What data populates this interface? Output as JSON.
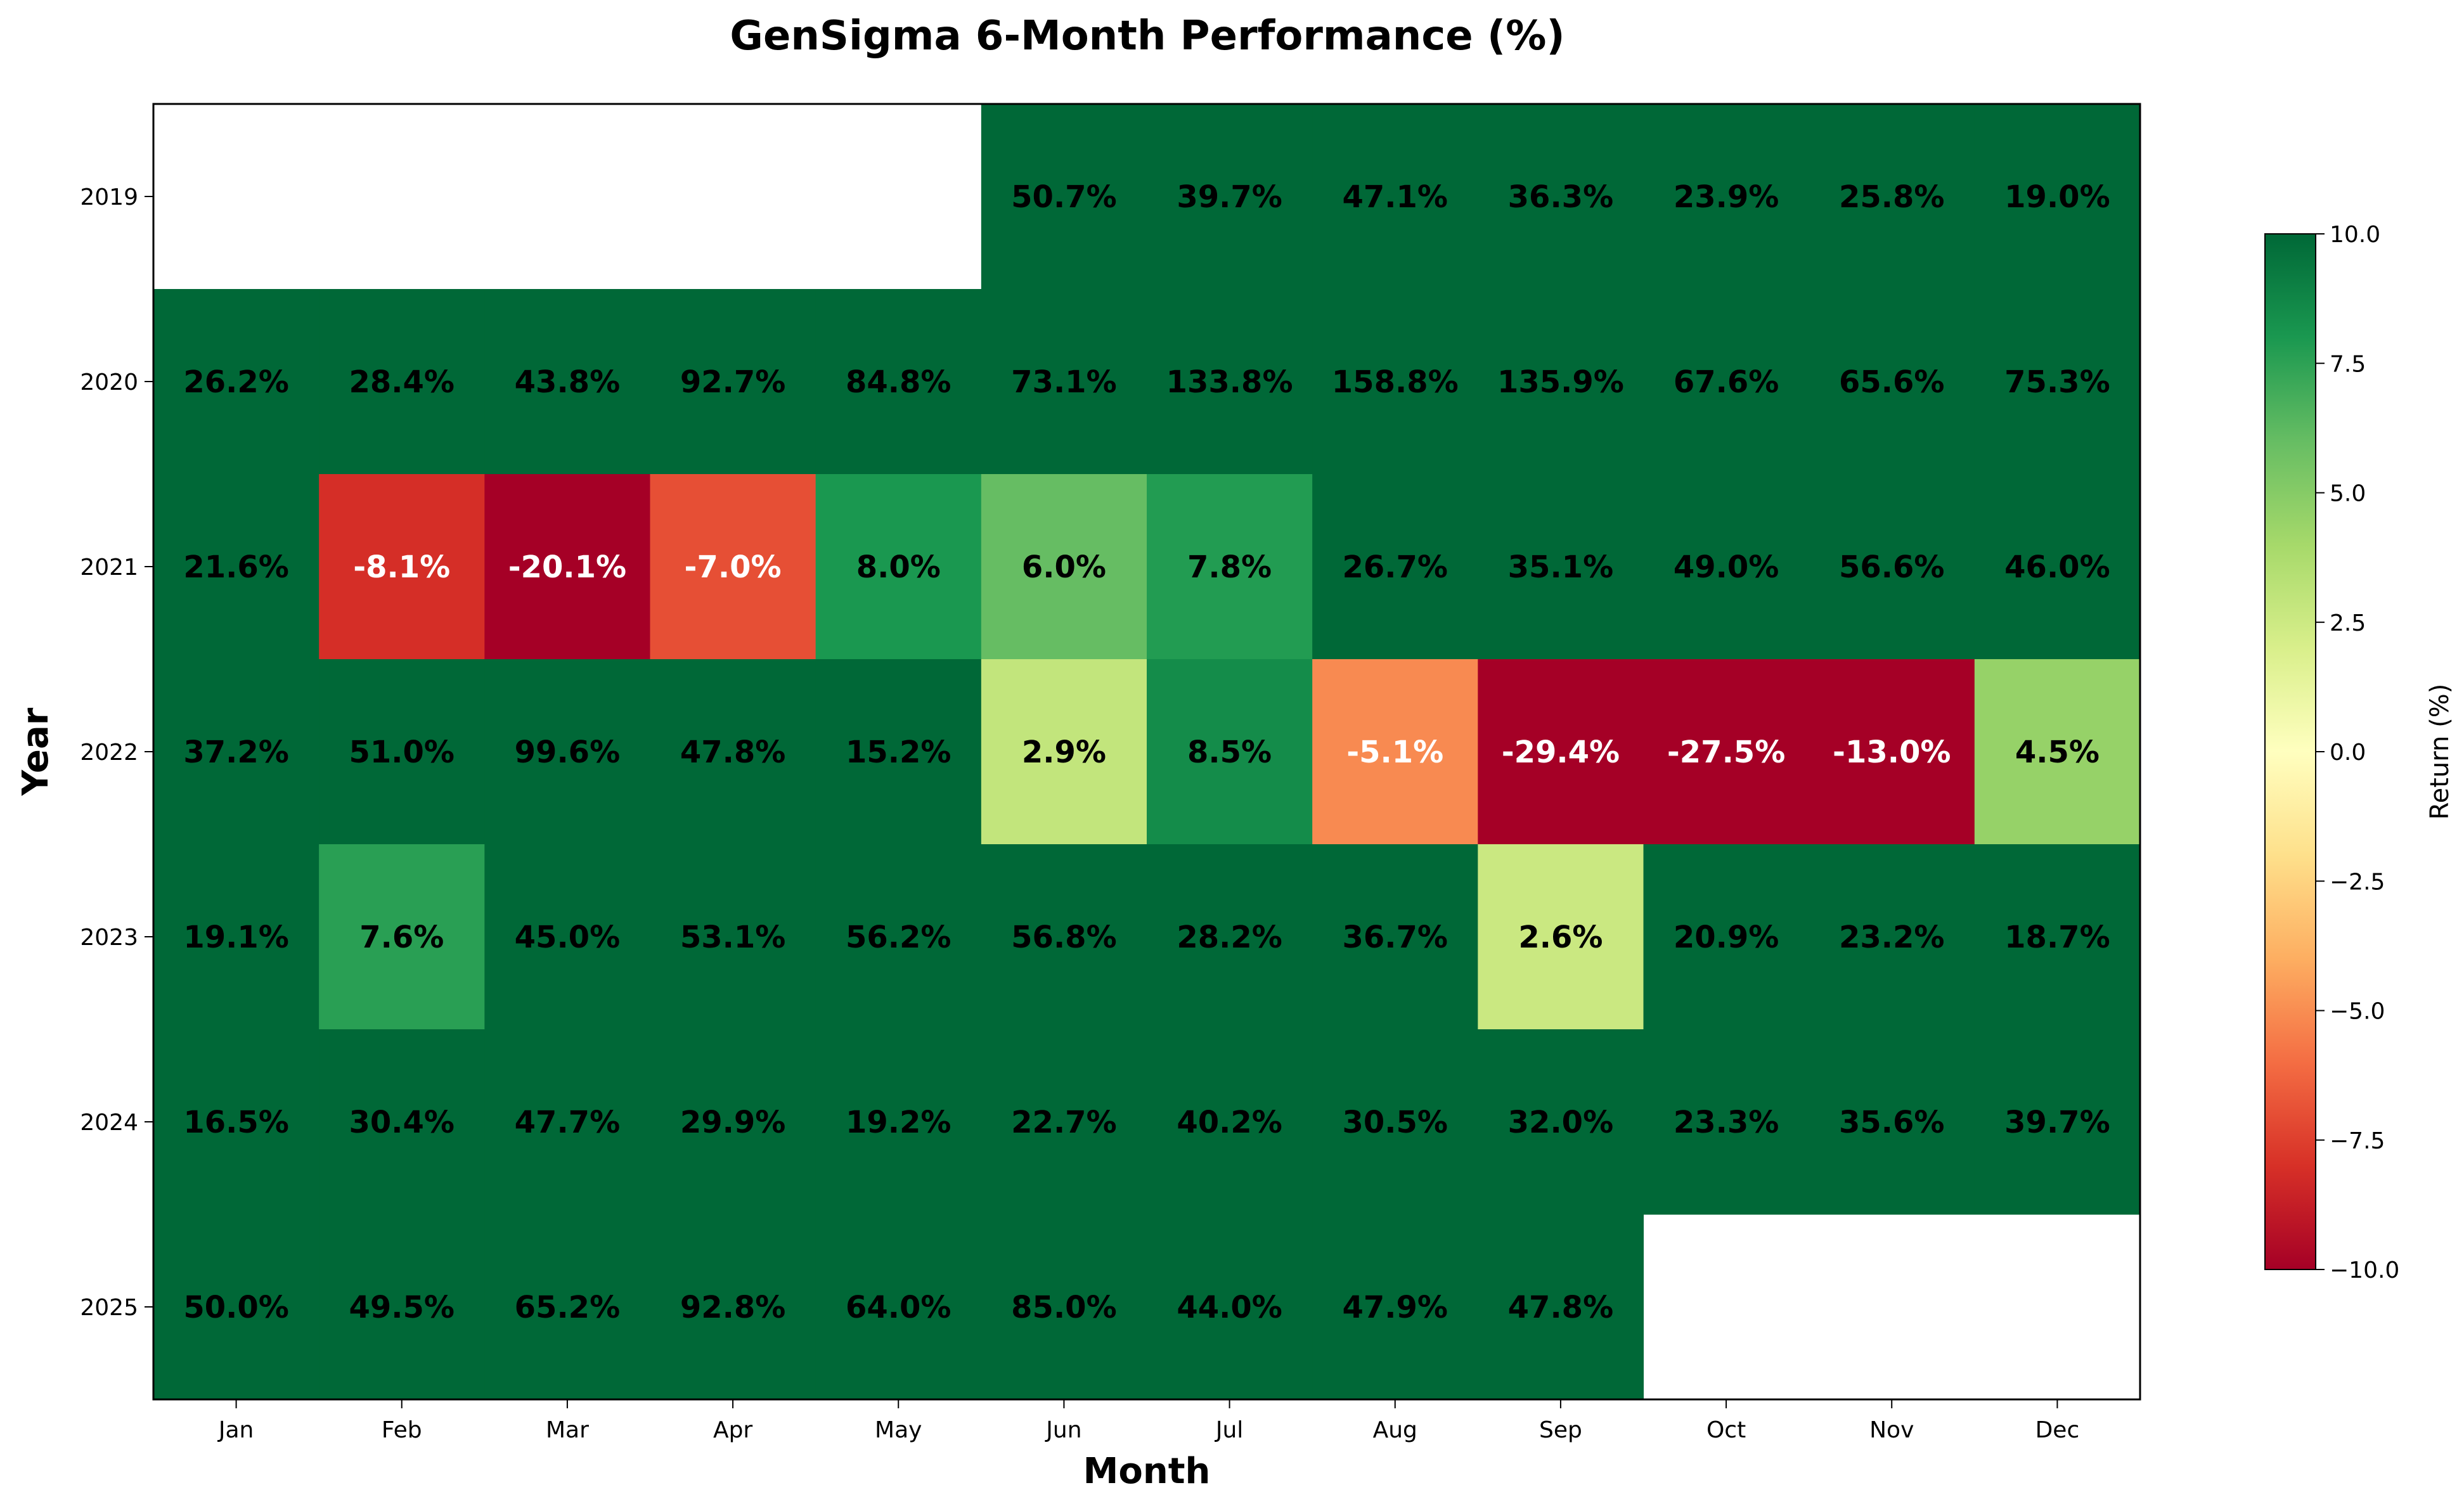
{
  "chart_data": {
    "type": "heatmap",
    "title": "GenSigma 6-Month Performance (%)",
    "xlabel": "Month",
    "ylabel": "Year",
    "categories": [
      "Jan",
      "Feb",
      "Mar",
      "Apr",
      "May",
      "Jun",
      "Jul",
      "Aug",
      "Sep",
      "Oct",
      "Nov",
      "Dec"
    ],
    "rows": [
      "2019",
      "2020",
      "2021",
      "2022",
      "2023",
      "2024",
      "2025"
    ],
    "values": [
      [
        null,
        null,
        null,
        null,
        null,
        50.7,
        39.7,
        47.1,
        36.3,
        23.9,
        25.8,
        19.0
      ],
      [
        26.2,
        28.4,
        43.8,
        92.7,
        84.8,
        73.1,
        133.8,
        158.8,
        135.9,
        67.6,
        65.6,
        75.3
      ],
      [
        21.6,
        -8.1,
        -20.1,
        -7.0,
        8.0,
        6.0,
        7.8,
        26.7,
        35.1,
        49.0,
        56.6,
        46.0
      ],
      [
        37.2,
        51.0,
        99.6,
        47.8,
        15.2,
        2.9,
        8.5,
        -5.1,
        -29.4,
        -27.5,
        -13.0,
        4.5
      ],
      [
        19.1,
        7.6,
        45.0,
        53.1,
        56.2,
        56.8,
        28.2,
        36.7,
        2.6,
        20.9,
        23.2,
        18.7
      ],
      [
        16.5,
        30.4,
        47.7,
        29.9,
        19.2,
        22.7,
        40.2,
        30.5,
        32.0,
        23.3,
        35.6,
        39.7
      ],
      [
        50.0,
        49.5,
        65.2,
        92.8,
        64.0,
        85.0,
        44.0,
        47.9,
        47.8,
        null,
        null,
        null
      ]
    ],
    "colormap": "RdYlGn",
    "vmin": -10,
    "vmax": 10,
    "colorbar": {
      "label": "Return (%)",
      "ticks": [
        "10.0",
        "7.5",
        "5.0",
        "2.5",
        "0.0",
        "−2.5",
        "−5.0",
        "−7.5",
        "−10.0"
      ],
      "tick_values": [
        10,
        7.5,
        5,
        2.5,
        0,
        -2.5,
        -5,
        -7.5,
        -10
      ]
    },
    "value_format": "{v}%",
    "grid": false
  }
}
